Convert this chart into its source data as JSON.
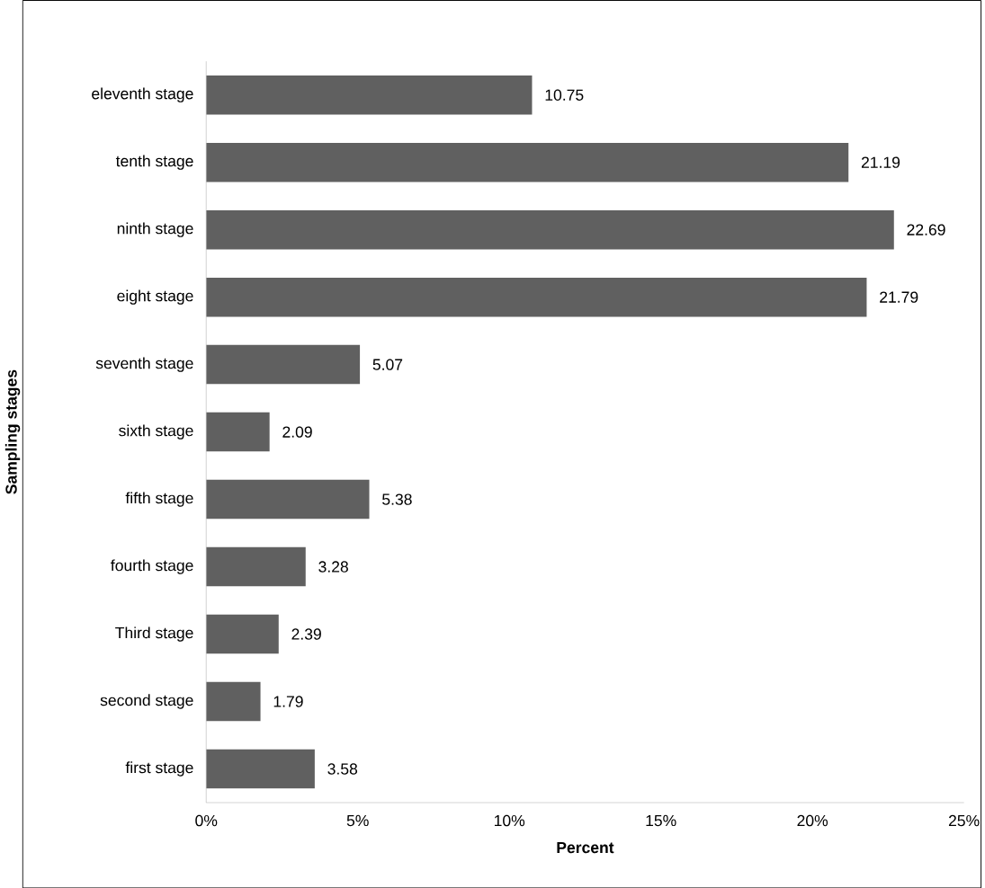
{
  "chart_data": {
    "type": "bar",
    "orientation": "horizontal",
    "xlabel": "Percent",
    "ylabel": "Sampling stages",
    "categories": [
      "eleventh stage",
      "tenth stage",
      "ninth stage",
      "eight stage",
      "seventh stage",
      "sixth stage",
      "fifth stage",
      "fourth stage",
      "Third stage",
      "second stage",
      "first stage"
    ],
    "values": [
      10.75,
      21.19,
      22.69,
      21.79,
      5.07,
      2.09,
      5.38,
      3.28,
      2.39,
      1.79,
      3.58
    ],
    "color": "#606060",
    "data_labels": true,
    "grid": false,
    "xlim": [
      0,
      25
    ],
    "xticks": [
      {
        "value": 0,
        "label": "0%"
      },
      {
        "value": 5,
        "label": "5%"
      },
      {
        "value": 10,
        "label": "10%"
      },
      {
        "value": 15,
        "label": "15%"
      },
      {
        "value": 20,
        "label": "20%"
      },
      {
        "value": 25,
        "label": "25%"
      }
    ]
  }
}
